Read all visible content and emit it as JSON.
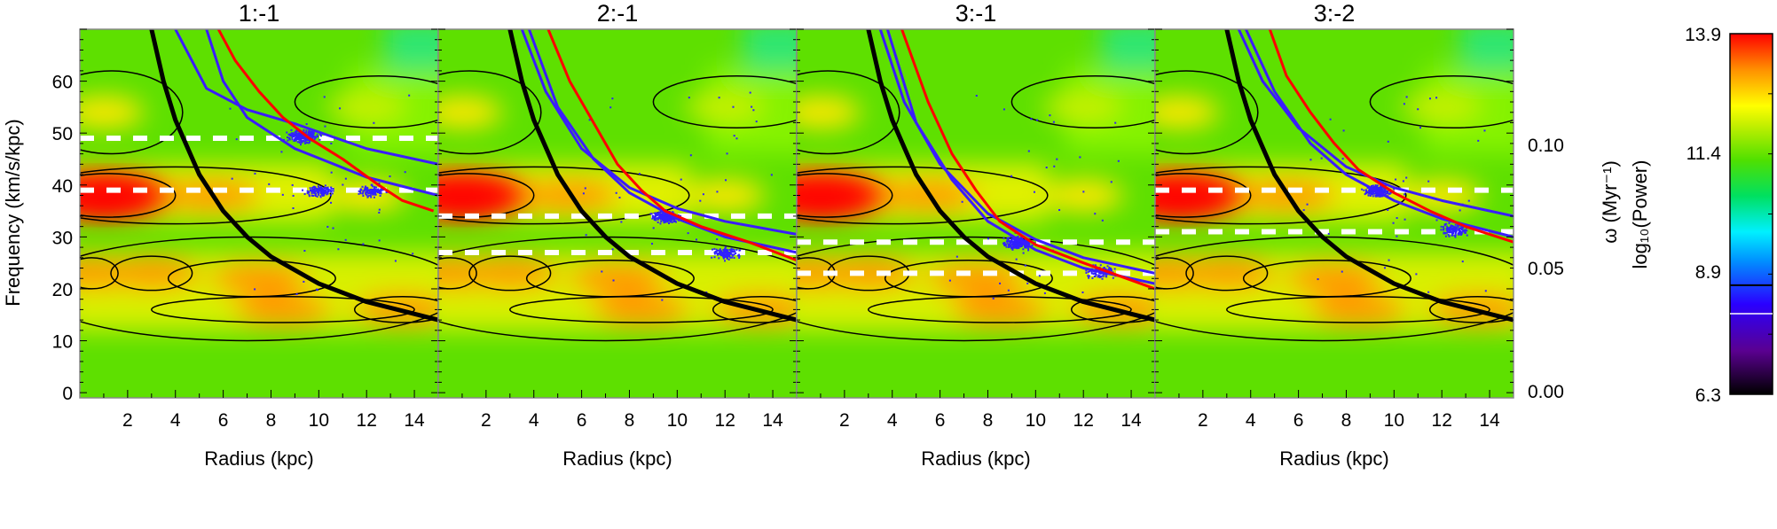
{
  "chart_data": {
    "type": "heatmap",
    "xlabel": "Radius (kpc)",
    "ylabel": "Frequency (km/s/kpc)",
    "ylabel_right": "ω (Myr⁻¹)",
    "colorbar_label": "log₁₀(Power)",
    "xlim": [
      0,
      15
    ],
    "ylim": [
      -1,
      70
    ],
    "xticks": [
      "2",
      "4",
      "6",
      "8",
      "10",
      "12",
      "14"
    ],
    "yticks": [
      "0",
      "10",
      "20",
      "30",
      "40",
      "50",
      "60"
    ],
    "yticks_right": [
      "0.00",
      "0.05",
      "0.10"
    ],
    "yticks_right_values": [
      0.0,
      0.05,
      0.1
    ],
    "colorbar": {
      "ticks": [
        "6.3",
        "8.9",
        "11.4",
        "13.9"
      ],
      "range": [
        6.3,
        13.9
      ],
      "black_line": 8.6,
      "white_line": 8.0
    },
    "black_curve": [
      [
        3,
        70
      ],
      [
        3.5,
        60
      ],
      [
        4,
        52.5
      ],
      [
        5,
        42
      ],
      [
        6,
        35
      ],
      [
        7,
        30
      ],
      [
        8,
        26.2
      ],
      [
        10,
        21
      ],
      [
        12,
        17.5
      ],
      [
        15,
        14
      ]
    ],
    "power_peaks": [
      {
        "r": 1,
        "f": 38,
        "level": "red"
      },
      {
        "r": 5.5,
        "f": 38,
        "level": "orange"
      },
      {
        "r": 0.5,
        "f": 23,
        "level": "orange"
      },
      {
        "r": 3,
        "f": 23,
        "level": "orange"
      },
      {
        "r": 7.5,
        "f": 22,
        "level": "orange"
      },
      {
        "r": 8.5,
        "f": 16,
        "level": "orange"
      },
      {
        "r": 13.5,
        "f": 16,
        "level": "orange"
      },
      {
        "r": 1,
        "f": 54,
        "level": "yellow"
      },
      {
        "r": 12,
        "f": 38,
        "level": "yellow"
      },
      {
        "r": 12,
        "f": 55,
        "level": "light"
      }
    ],
    "panels": [
      {
        "title": "1:-1",
        "dashed_lines": [
          49,
          39
        ],
        "blue_curves": [
          [
            [
              4,
              70
            ],
            [
              5.3,
              58.6
            ],
            [
              7,
              54.5
            ],
            [
              9,
              51.8
            ],
            [
              12,
              47
            ],
            [
              15,
              44
            ]
          ],
          [
            [
              5.3,
              70
            ],
            [
              6,
              60
            ],
            [
              7,
              53
            ],
            [
              9,
              47
            ],
            [
              12,
              41.5
            ],
            [
              15,
              38
            ]
          ]
        ],
        "red_curve": [
          [
            5.8,
            70
          ],
          [
            6.5,
            64
          ],
          [
            7.5,
            58
          ],
          [
            8.5,
            53
          ],
          [
            9.6,
            49
          ],
          [
            11,
            45
          ],
          [
            12.5,
            40
          ],
          [
            13.5,
            37
          ],
          [
            14.8,
            35
          ]
        ],
        "clusters": [
          [
            9.3,
            49.5
          ],
          [
            12.2,
            39
          ],
          [
            10,
            39
          ]
        ]
      },
      {
        "title": "2:-1",
        "dashed_lines": [
          34,
          27
        ],
        "blue_curves": [
          [
            [
              3.5,
              70
            ],
            [
              4.5,
              58
            ],
            [
              6,
              47
            ],
            [
              8,
              39.5
            ],
            [
              10,
              35.5
            ],
            [
              12,
              33
            ],
            [
              15,
              30.5
            ]
          ],
          [
            [
              3.8,
              70
            ],
            [
              5,
              55
            ],
            [
              6.5,
              45
            ],
            [
              8,
              38.5
            ],
            [
              10,
              33.5
            ],
            [
              12,
              30
            ],
            [
              15,
              27
            ]
          ]
        ],
        "red_curve": [
          [
            4.6,
            70
          ],
          [
            5.5,
            60
          ],
          [
            6.5,
            52
          ],
          [
            7.5,
            44
          ],
          [
            8.5,
            39
          ],
          [
            9.5,
            35
          ],
          [
            11,
            32
          ],
          [
            13,
            29
          ],
          [
            15,
            25.5
          ]
        ],
        "clusters": [
          [
            9.5,
            34
          ],
          [
            12,
            27
          ]
        ]
      },
      {
        "title": "3:-1",
        "dashed_lines": [
          29,
          23
        ],
        "blue_curves": [
          [
            [
              3.5,
              70
            ],
            [
              4.5,
              56
            ],
            [
              6,
              44
            ],
            [
              8,
              34.5
            ],
            [
              10,
              29.5
            ],
            [
              12,
              26
            ],
            [
              15,
              23
            ]
          ],
          [
            [
              3.8,
              70
            ],
            [
              5,
              52
            ],
            [
              6.5,
              41
            ],
            [
              8,
              33
            ],
            [
              10,
              27.5
            ],
            [
              12,
              24
            ],
            [
              15,
              21
            ]
          ]
        ],
        "red_curve": [
          [
            4.4,
            70
          ],
          [
            5.5,
            56
          ],
          [
            6.5,
            46
          ],
          [
            7.5,
            39
          ],
          [
            8.5,
            33
          ],
          [
            10,
            28.5
          ],
          [
            12,
            25
          ],
          [
            15,
            20
          ]
        ],
        "clusters": [
          [
            9.2,
            29
          ],
          [
            12.7,
            23.5
          ]
        ]
      },
      {
        "title": "3:-2",
        "dashed_lines": [
          39,
          31
        ],
        "blue_curves": [
          [
            [
              3.5,
              70
            ],
            [
              4.5,
              60
            ],
            [
              6,
              51
            ],
            [
              8,
              43.5
            ],
            [
              10,
              39.5
            ],
            [
              12,
              37
            ],
            [
              15,
              34
            ]
          ],
          [
            [
              3.8,
              70
            ],
            [
              5,
              58
            ],
            [
              6.5,
              48
            ],
            [
              8,
              42
            ],
            [
              10,
              37
            ],
            [
              12,
              33.5
            ],
            [
              15,
              30
            ]
          ]
        ],
        "red_curve": [
          [
            4.8,
            70
          ],
          [
            5.5,
            61
          ],
          [
            6.5,
            54
          ],
          [
            7.5,
            48
          ],
          [
            8.5,
            43
          ],
          [
            10,
            38.5
          ],
          [
            11.5,
            35
          ],
          [
            13,
            32
          ],
          [
            15,
            29
          ]
        ],
        "clusters": [
          [
            9.3,
            39
          ],
          [
            12.5,
            31.5
          ]
        ]
      }
    ]
  }
}
